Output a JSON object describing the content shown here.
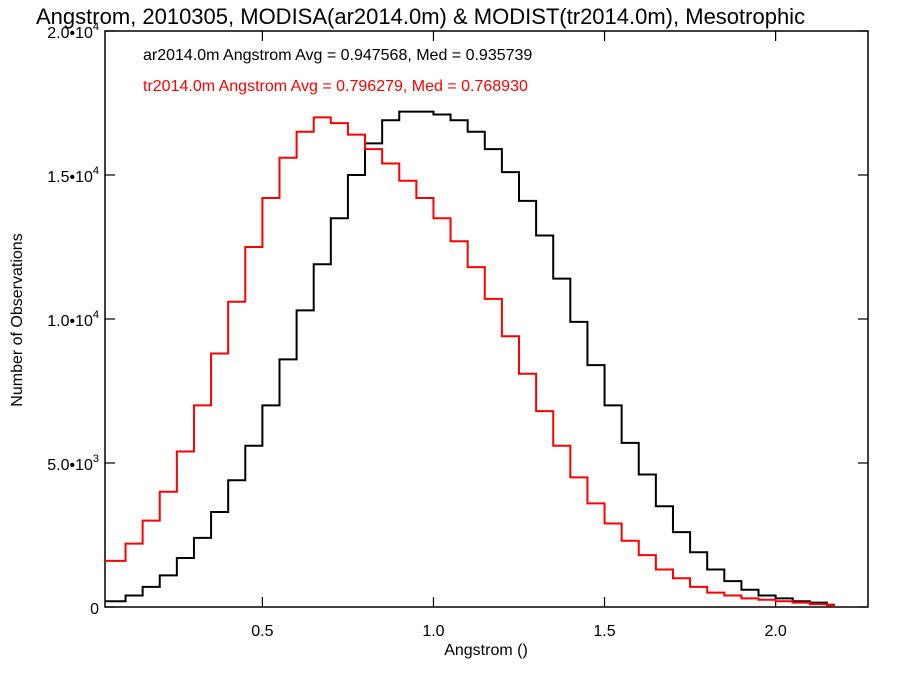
{
  "chart_data": {
    "type": "line",
    "title": "Angstrom, 2010305, MODISA(ar2014.0m) & MODIST(tr2014.0m), Mesotrophic",
    "xlabel": "Angstrom ()",
    "ylabel": "Number of Observations",
    "xlim": [
      0.04,
      2.27
    ],
    "ylim": [
      0,
      20000
    ],
    "x_ticks": [
      {
        "value": 0.5,
        "label": "0.5"
      },
      {
        "value": 1.0,
        "label": "1.0"
      },
      {
        "value": 1.5,
        "label": "1.5"
      },
      {
        "value": 2.0,
        "label": "2.0"
      }
    ],
    "y_ticks": [
      {
        "value": 0,
        "label": "0",
        "exp": ""
      },
      {
        "value": 5000,
        "label": "5.0•10",
        "exp": "3"
      },
      {
        "value": 10000,
        "label": "1.0•10",
        "exp": "4"
      },
      {
        "value": 15000,
        "label": "1.5•10",
        "exp": "4"
      },
      {
        "value": 20000,
        "label": "2.0•10",
        "exp": "4"
      }
    ],
    "step_style": "histogram",
    "grid": false,
    "annotations": [
      {
        "text": "ar2014.0m Angstrom Avg = 0.947568, Med = 0.935739",
        "color": "#000000"
      },
      {
        "text": "tr2014.0m Angstrom Avg = 0.796279, Med = 0.768930",
        "color": "#ff0000"
      }
    ],
    "series": [
      {
        "color": "#000000",
        "x": [
          0.04,
          0.1,
          0.15,
          0.2,
          0.25,
          0.3,
          0.35,
          0.4,
          0.45,
          0.5,
          0.55,
          0.6,
          0.65,
          0.7,
          0.75,
          0.8,
          0.85,
          0.9,
          0.95,
          1.0,
          1.05,
          1.1,
          1.15,
          1.2,
          1.25,
          1.3,
          1.35,
          1.4,
          1.45,
          1.5,
          1.55,
          1.6,
          1.65,
          1.7,
          1.75,
          1.8,
          1.85,
          1.9,
          1.95,
          2.0,
          2.05,
          2.1,
          2.15
        ],
        "y": [
          200,
          400,
          700,
          1100,
          1700,
          2400,
          3300,
          4400,
          5600,
          7000,
          8600,
          10300,
          11900,
          13500,
          15000,
          16100,
          16900,
          17200,
          17200,
          17100,
          16900,
          16500,
          15900,
          15100,
          14100,
          12900,
          11400,
          9900,
          8400,
          7000,
          5700,
          4600,
          3500,
          2600,
          1900,
          1300,
          900,
          600,
          400,
          300,
          200,
          150,
          80
        ]
      },
      {
        "color": "#ff0000",
        "x": [
          0.04,
          0.1,
          0.15,
          0.2,
          0.25,
          0.3,
          0.35,
          0.4,
          0.45,
          0.5,
          0.55,
          0.6,
          0.65,
          0.7,
          0.75,
          0.8,
          0.85,
          0.9,
          0.95,
          1.0,
          1.05,
          1.1,
          1.15,
          1.2,
          1.25,
          1.3,
          1.35,
          1.4,
          1.45,
          1.5,
          1.55,
          1.6,
          1.65,
          1.7,
          1.75,
          1.8,
          1.85,
          1.9,
          1.95,
          2.0,
          2.05,
          2.1,
          2.15
        ],
        "y": [
          1600,
          2200,
          3000,
          4000,
          5400,
          7000,
          8800,
          10600,
          12500,
          14200,
          15600,
          16500,
          17000,
          16800,
          16400,
          15900,
          15400,
          14800,
          14200,
          13500,
          12700,
          11800,
          10700,
          9400,
          8100,
          6800,
          5600,
          4500,
          3600,
          2900,
          2300,
          1800,
          1300,
          1000,
          700,
          500,
          400,
          300,
          250,
          200,
          150,
          100,
          60
        ]
      }
    ]
  }
}
